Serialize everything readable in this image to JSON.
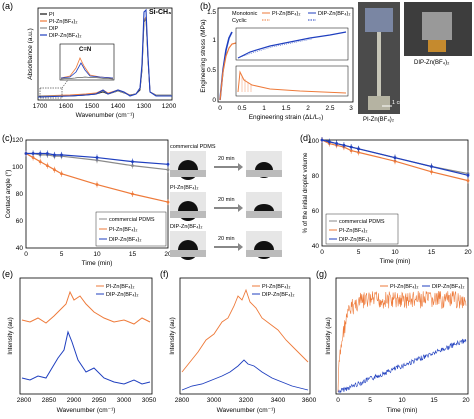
{
  "figure": {
    "panels": {
      "a": {
        "tag": "(a)",
        "xlabel": "Wavenumber (cm⁻¹)",
        "ylabel": "Absorbance (a.u.)",
        "xticks": [
          "1700",
          "1600",
          "1500",
          "1400",
          "1300",
          "1200"
        ],
        "legend": [
          "PI",
          "PI-Zn(BF₄)₂",
          "DIP",
          "DIP-Zn(BF₄)₂"
        ],
        "annot_sich3": "Si-CH₃",
        "annot_cn": "C=N"
      },
      "b": {
        "tag": "(b)",
        "xlabel": "Engineering strain (ΔL/L₀)",
        "ylabel": "Engineering stress (MPa)",
        "xticks": [
          "0",
          "0.5",
          "1",
          "1.5",
          "2",
          "2.5",
          "3"
        ],
        "yticks": [
          "0",
          "0.5",
          "1",
          "1.5"
        ],
        "legend_monotonic": "Monotonic",
        "legend_cyclic": "Cyclic",
        "legend_series": [
          "PI-Zn(BF₄)₂",
          "DIP-Zn(BF₄)₂"
        ],
        "photo_label1": "PI-Zn(BF₄)₂",
        "photo_label2": "DIP-Zn(BF₄)₂",
        "scale_label": "1 cm"
      },
      "c": {
        "tag": "(c)",
        "xlabel": "Time (min)",
        "ylabel": "Contact angle (°)",
        "xticks": [
          "0",
          "5",
          "10",
          "15",
          "20"
        ],
        "yticks": [
          "40",
          "60",
          "80",
          "100",
          "120"
        ],
        "legend": [
          "commercial PDMS",
          "PI-Zn(BF₄)₂",
          "DIP-Zn(BF₄)₂"
        ],
        "droplet_rows": [
          "commercial PDMS",
          "PI-Zn(BF₄)₂",
          "DIP-Zn(BF₄)₂"
        ],
        "arrow_label": "20 min"
      },
      "d": {
        "tag": "(d)",
        "xlabel": "Time (min)",
        "ylabel": "% of the initial droplet volume",
        "xticks": [
          "0",
          "5",
          "10",
          "15",
          "20"
        ],
        "yticks": [
          "40",
          "60",
          "80",
          "100"
        ],
        "legend": [
          "commercial PDMS",
          "PI-Zn(BF₄)₂",
          "DIP-Zn(BF₄)₂"
        ]
      },
      "e": {
        "tag": "(e)",
        "xlabel": "Wavenumber (cm⁻¹)",
        "ylabel": "Intensity (au)",
        "xticks": [
          "2800",
          "2850",
          "2900",
          "2950",
          "3000",
          "3050"
        ],
        "legend": [
          "PI-Zn(BF₄)₂",
          "DIP-Zn(BF₄)₂"
        ]
      },
      "f": {
        "tag": "(f)",
        "xlabel": "Wavenumber (cm⁻¹)",
        "ylabel": "Intensity (au)",
        "xticks": [
          "2800",
          "3000",
          "3200",
          "3400",
          "3600"
        ],
        "legend": [
          "PI-Zn(BF₄)₂",
          "DIP-Zn(BF₄)₂"
        ]
      },
      "g": {
        "tag": "(g)",
        "xlabel": "Time (min)",
        "ylabel": "Intensity (au)",
        "xticks": [
          "0",
          "5",
          "10",
          "15",
          "20"
        ],
        "legend": [
          "PI-Zn(BF₄)₂",
          "DIP-Zn(BF₄)₂"
        ]
      }
    },
    "colors": {
      "orange": "#ee7a3a",
      "blue": "#1f3fbf",
      "gray": "#8a8a8a",
      "black": "#111111"
    }
  },
  "chart_data": [
    {
      "type": "line",
      "panel": "c",
      "x": [
        0,
        1,
        2,
        3,
        4,
        5,
        10,
        15,
        20
      ],
      "series": [
        {
          "name": "commercial PDMS",
          "values": [
            110,
            110,
            109,
            109,
            108,
            108,
            105,
            101,
            98
          ]
        },
        {
          "name": "PI-Zn(BF₄)₂",
          "values": [
            110,
            107,
            104,
            101,
            98,
            95,
            87,
            80,
            74
          ]
        },
        {
          "name": "DIP-Zn(BF₄)₂",
          "values": [
            110,
            110,
            110,
            110,
            109,
            109,
            107,
            104,
            102
          ]
        }
      ],
      "ylim": [
        40,
        120
      ],
      "xlim": [
        0,
        20
      ]
    },
    {
      "type": "line",
      "panel": "d",
      "x": [
        0,
        1,
        2,
        3,
        4,
        5,
        10,
        15,
        20
      ],
      "series": [
        {
          "name": "commercial PDMS",
          "values": [
            100,
            99,
            98,
            97,
            96,
            95,
            90,
            85,
            81
          ]
        },
        {
          "name": "PI-Zn(BF₄)₂",
          "values": [
            100,
            98,
            97,
            96,
            94,
            93,
            88,
            82,
            77
          ]
        },
        {
          "name": "DIP-Zn(BF₄)₂",
          "values": [
            100,
            99,
            98,
            97,
            96,
            95,
            90,
            85,
            80
          ]
        }
      ],
      "ylim": [
        40,
        100
      ],
      "xlim": [
        0,
        20
      ]
    }
  ]
}
